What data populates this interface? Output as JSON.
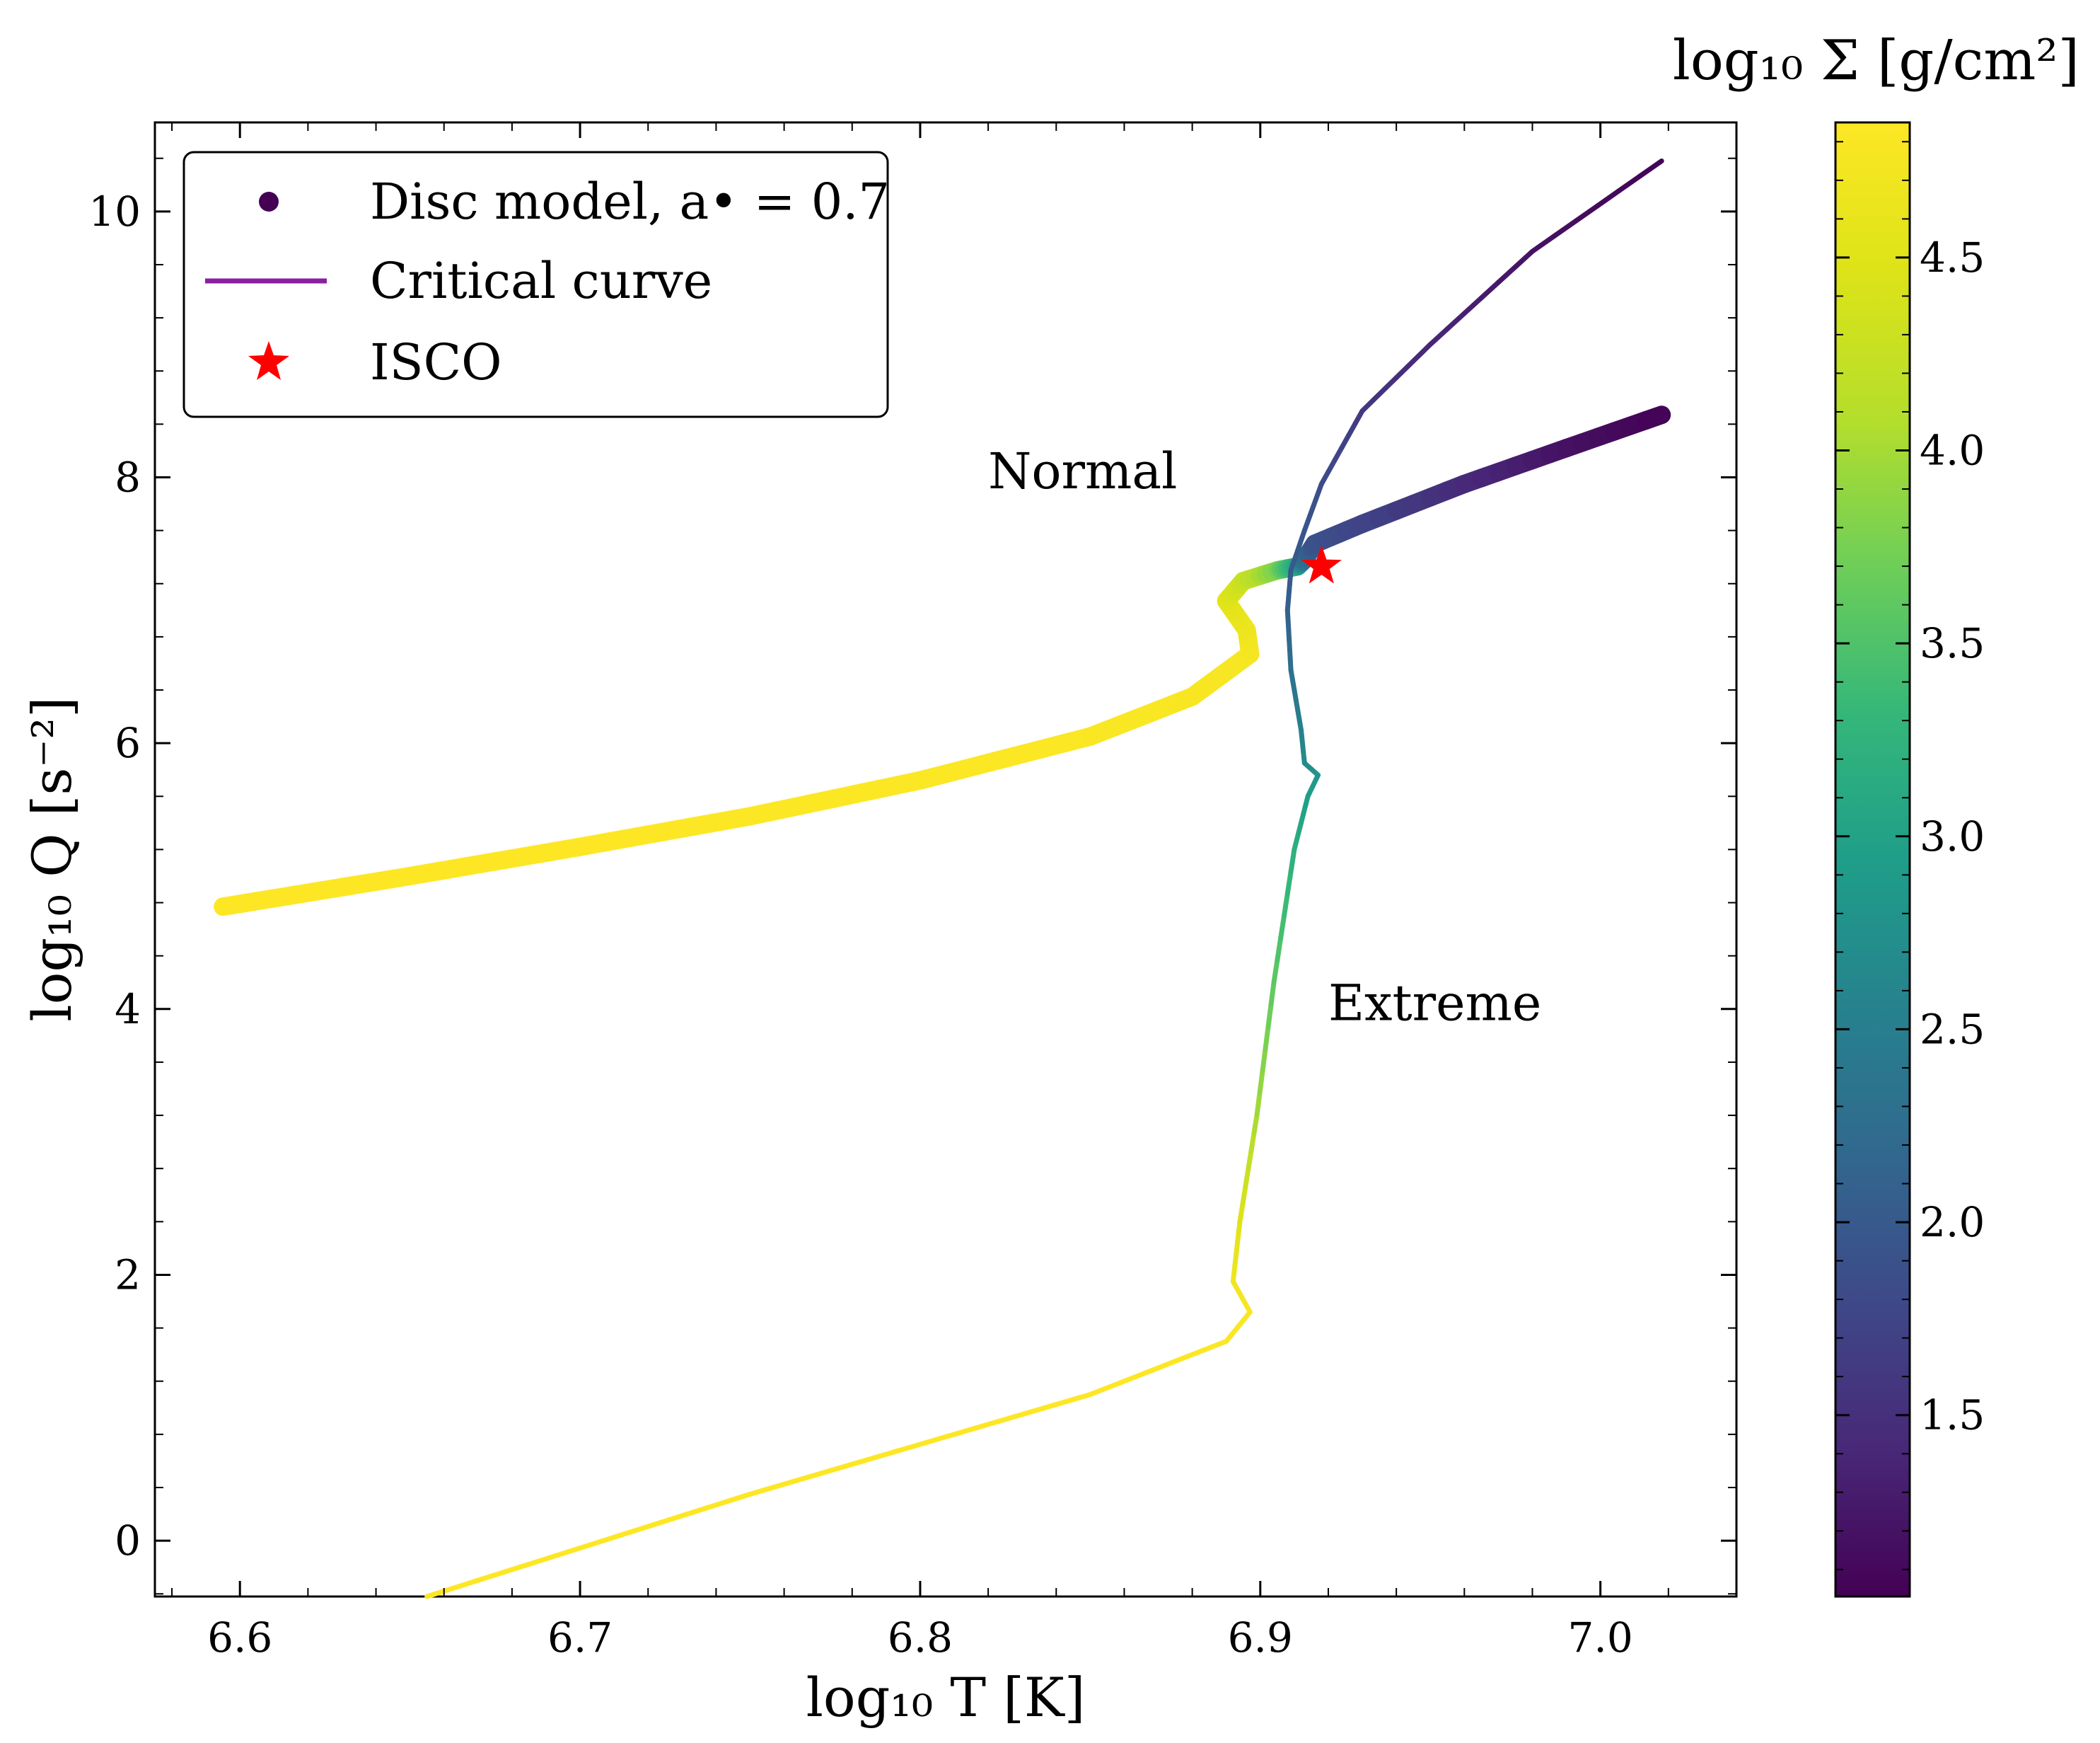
{
  "chart_data": {
    "type": "scatter",
    "xlabel": "log₁₀ T [K]",
    "ylabel": "log₁₀ Q [s⁻²]",
    "xlim": [
      6.575,
      7.04
    ],
    "ylim": [
      -0.42,
      10.67
    ],
    "x_ticks": [
      6.6,
      6.7,
      6.8,
      6.9,
      7.0
    ],
    "x_tick_labels": [
      "6.6",
      "6.7",
      "6.8",
      "6.9",
      "7.0"
    ],
    "y_ticks": [
      0,
      2,
      4,
      6,
      8,
      10
    ],
    "y_tick_labels": [
      "0",
      "2",
      "4",
      "6",
      "8",
      "10"
    ],
    "legend": {
      "position": "upper-left",
      "entries": [
        {
          "kind": "disc",
          "label": "Disc model, a• = 0.7",
          "color": "#440154"
        },
        {
          "kind": "critical",
          "label": "Critical curve",
          "color": "#8a1fa0"
        },
        {
          "kind": "isco",
          "label": "ISCO",
          "color": "#ff0000"
        }
      ]
    },
    "annotations": [
      {
        "text": "Normal",
        "x": 6.82,
        "y": 8.05
      },
      {
        "text": "Extreme",
        "x": 6.92,
        "y": 4.05
      }
    ],
    "colorbar": {
      "label": "log₁₀ Σ [g/cm²]",
      "range": [
        1.03,
        4.85
      ],
      "ticks": [
        1.5,
        2.0,
        2.5,
        3.0,
        3.5,
        4.0,
        4.5
      ],
      "tick_labels": [
        "1.5",
        "2.0",
        "2.5",
        "3.0",
        "3.5",
        "4.0",
        "4.5"
      ],
      "colormap": "viridis"
    },
    "series": [
      {
        "name": "Disc model",
        "style": "thick",
        "points": [
          {
            "x": 6.595,
            "y": 4.77,
            "c": 4.85
          },
          {
            "x": 6.65,
            "y": 5.0,
            "c": 4.85
          },
          {
            "x": 6.7,
            "y": 5.22,
            "c": 4.85
          },
          {
            "x": 6.75,
            "y": 5.45,
            "c": 4.84
          },
          {
            "x": 6.8,
            "y": 5.72,
            "c": 4.83
          },
          {
            "x": 6.85,
            "y": 6.05,
            "c": 4.82
          },
          {
            "x": 6.88,
            "y": 6.35,
            "c": 4.8
          },
          {
            "x": 6.897,
            "y": 6.67,
            "c": 4.77
          },
          {
            "x": 6.896,
            "y": 6.85,
            "c": 4.7
          },
          {
            "x": 6.89,
            "y": 7.07,
            "c": 4.55
          },
          {
            "x": 6.895,
            "y": 7.22,
            "c": 4.3
          },
          {
            "x": 6.905,
            "y": 7.3,
            "c": 3.8
          },
          {
            "x": 6.911,
            "y": 7.33,
            "c": 3.1
          },
          {
            "x": 6.913,
            "y": 7.38,
            "c": 2.3
          },
          {
            "x": 6.916,
            "y": 7.5,
            "c": 1.9
          },
          {
            "x": 6.93,
            "y": 7.65,
            "c": 1.75
          },
          {
            "x": 6.96,
            "y": 7.95,
            "c": 1.45
          },
          {
            "x": 6.99,
            "y": 8.22,
            "c": 1.2
          },
          {
            "x": 7.018,
            "y": 8.47,
            "c": 1.05
          }
        ]
      },
      {
        "name": "Critical curve",
        "style": "thin",
        "points": [
          {
            "x": 6.655,
            "y": -0.42,
            "c": 4.85
          },
          {
            "x": 6.75,
            "y": 0.35,
            "c": 4.85
          },
          {
            "x": 6.85,
            "y": 1.1,
            "c": 4.85
          },
          {
            "x": 6.89,
            "y": 1.5,
            "c": 4.83
          },
          {
            "x": 6.897,
            "y": 1.72,
            "c": 4.8
          },
          {
            "x": 6.892,
            "y": 1.95,
            "c": 4.7
          },
          {
            "x": 6.894,
            "y": 2.4,
            "c": 4.5
          },
          {
            "x": 6.899,
            "y": 3.2,
            "c": 4.0
          },
          {
            "x": 6.904,
            "y": 4.2,
            "c": 3.6
          },
          {
            "x": 6.91,
            "y": 5.2,
            "c": 3.2
          },
          {
            "x": 6.914,
            "y": 5.6,
            "c": 2.95
          },
          {
            "x": 6.917,
            "y": 5.76,
            "c": 2.85
          },
          {
            "x": 6.913,
            "y": 5.85,
            "c": 2.7
          },
          {
            "x": 6.912,
            "y": 6.1,
            "c": 2.55
          },
          {
            "x": 6.909,
            "y": 6.55,
            "c": 2.3
          },
          {
            "x": 6.908,
            "y": 7.0,
            "c": 2.1
          },
          {
            "x": 6.909,
            "y": 7.3,
            "c": 2.0
          },
          {
            "x": 6.913,
            "y": 7.6,
            "c": 1.95
          },
          {
            "x": 6.918,
            "y": 7.95,
            "c": 1.85
          },
          {
            "x": 6.93,
            "y": 8.5,
            "c": 1.6
          },
          {
            "x": 6.95,
            "y": 9.0,
            "c": 1.4
          },
          {
            "x": 6.98,
            "y": 9.7,
            "c": 1.2
          },
          {
            "x": 7.018,
            "y": 10.38,
            "c": 1.05
          }
        ]
      }
    ],
    "isco": {
      "x": 6.918,
      "y": 7.33
    }
  }
}
